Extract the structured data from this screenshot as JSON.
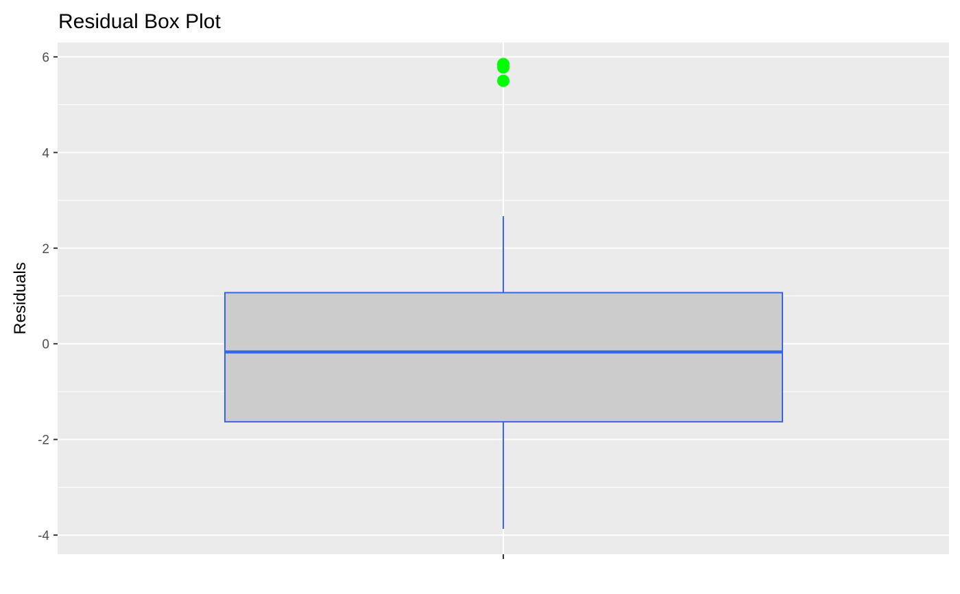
{
  "chart_data": {
    "type": "boxplot",
    "title": "Residual Box Plot",
    "xlabel": "",
    "ylabel": "Residuals",
    "ylim": [
      -4.4,
      6.3
    ],
    "yticks": [
      -4,
      -2,
      0,
      2,
      4,
      6
    ],
    "ytick_labels": [
      "-4",
      "-2",
      "0",
      "2",
      "4",
      "6"
    ],
    "grid": true,
    "panel_background": "#ebebeb",
    "grid_color": "#ffffff",
    "box": {
      "q1": -1.63,
      "median": -0.17,
      "q3": 1.07,
      "whisker_low": -3.87,
      "whisker_high": 2.67,
      "outliers": [
        5.85,
        5.78,
        5.5
      ]
    },
    "box_fill": "#cccccc",
    "box_stroke": "#3366ee",
    "outlier_color": "#00ff00"
  }
}
